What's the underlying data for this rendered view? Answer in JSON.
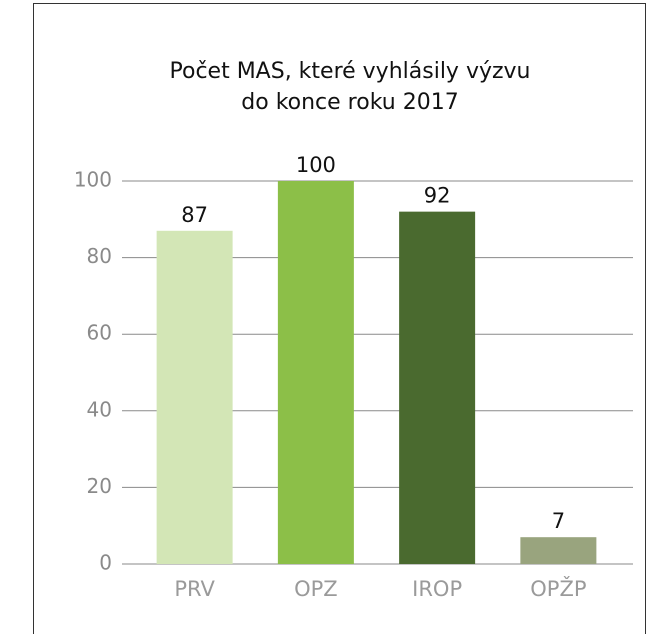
{
  "chart_data": {
    "type": "bar",
    "title": [
      "Počet MAS, které vyhlásily výzvu",
      "do konce roku 2017"
    ],
    "categories": [
      "PRV",
      "OPZ",
      "IROP",
      "OPŽP"
    ],
    "values": [
      87,
      100,
      92,
      7
    ],
    "colors": [
      "#d3e6b6",
      "#8cbf48",
      "#4a6a2f",
      "#99a47e"
    ],
    "ylim": [
      0,
      100
    ],
    "yticks": [
      0,
      20,
      40,
      60,
      80,
      100
    ],
    "grid": true
  }
}
